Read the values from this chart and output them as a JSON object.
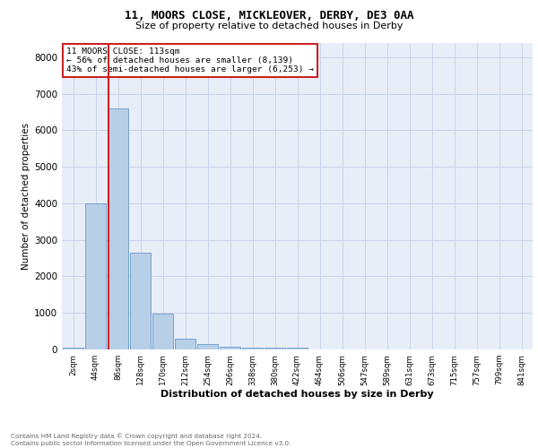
{
  "title1": "11, MOORS CLOSE, MICKLEOVER, DERBY, DE3 0AA",
  "title2": "Size of property relative to detached houses in Derby",
  "xlabel": "Distribution of detached houses by size in Derby",
  "ylabel": "Number of detached properties",
  "bar_labels": [
    "2sqm",
    "44sqm",
    "86sqm",
    "128sqm",
    "170sqm",
    "212sqm",
    "254sqm",
    "296sqm",
    "338sqm",
    "380sqm",
    "422sqm",
    "464sqm",
    "506sqm",
    "547sqm",
    "589sqm",
    "631sqm",
    "673sqm",
    "715sqm",
    "757sqm",
    "799sqm",
    "841sqm"
  ],
  "bar_heights": [
    50,
    4000,
    6600,
    2650,
    970,
    295,
    135,
    80,
    55,
    50,
    55,
    0,
    0,
    0,
    0,
    0,
    0,
    0,
    0,
    0,
    0
  ],
  "bar_color": "#b8cfe8",
  "bar_edge_color": "#6699cc",
  "vline_color": "#cc2222",
  "annotation_title": "11 MOORS CLOSE: 113sqm",
  "annotation_line1": "← 56% of detached houses are smaller (8,139)",
  "annotation_line2": "43% of semi-detached houses are larger (6,253) →",
  "annotation_box_color": "#ffffff",
  "annotation_box_edge": "#cc2222",
  "ylim": [
    0,
    8400
  ],
  "yticks": [
    0,
    1000,
    2000,
    3000,
    4000,
    5000,
    6000,
    7000,
    8000
  ],
  "grid_color": "#c8d4e8",
  "background_color": "#e8eef8",
  "footer_line1": "Contains HM Land Registry data © Crown copyright and database right 2024.",
  "footer_line2": "Contains public sector information licensed under the Open Government Licence v3.0."
}
